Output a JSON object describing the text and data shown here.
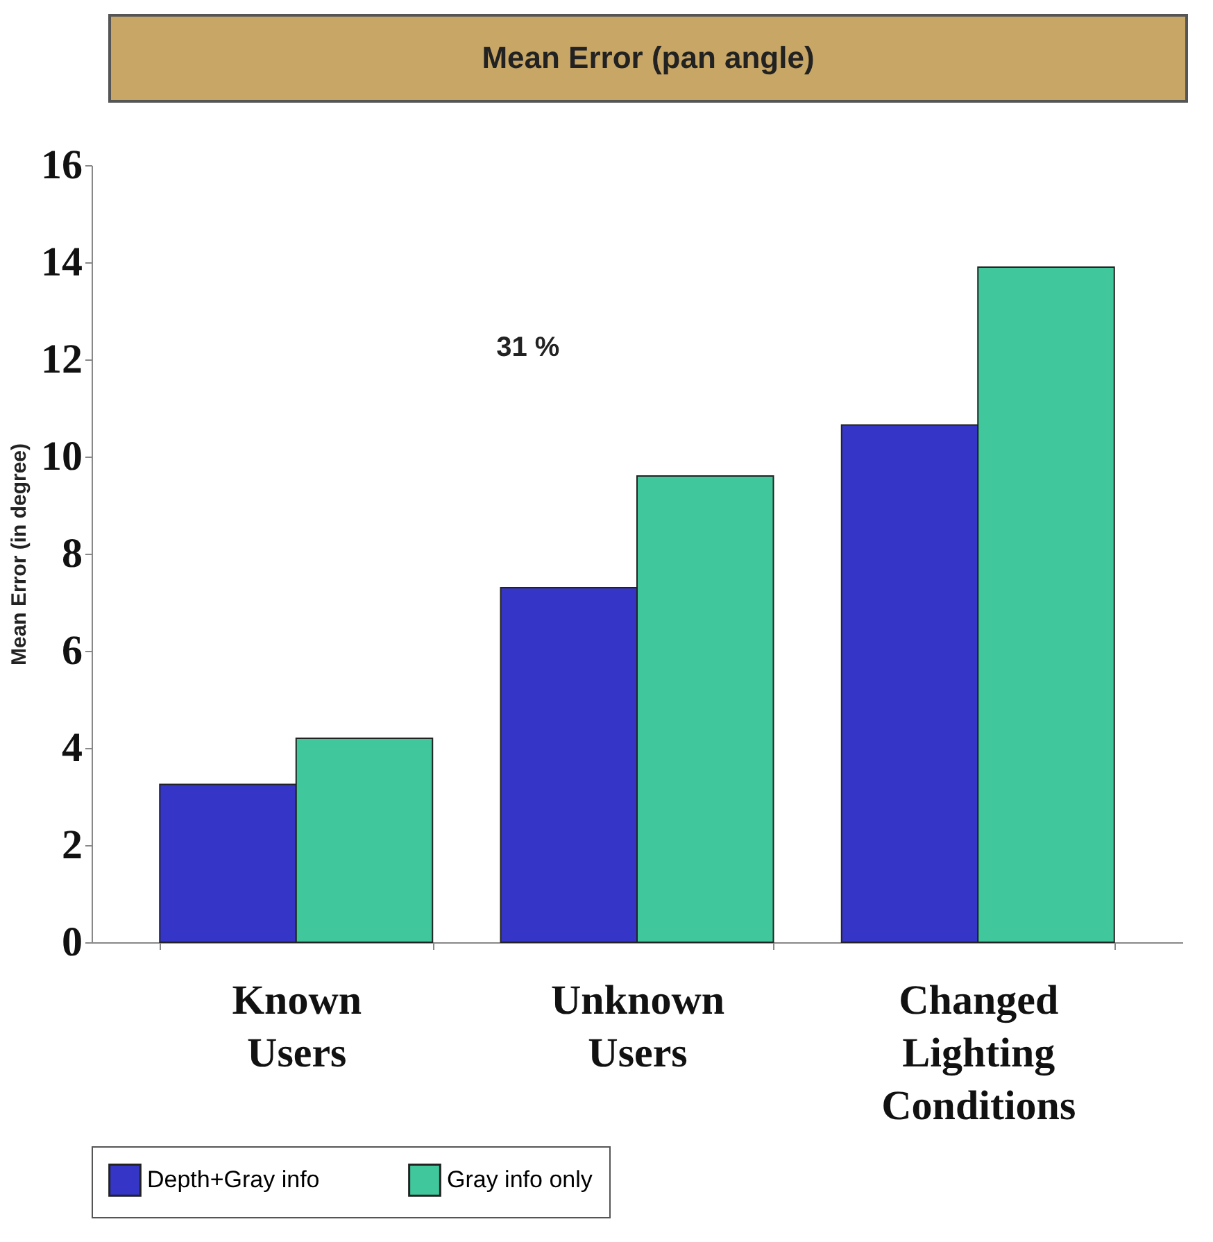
{
  "chart_data": {
    "type": "bar",
    "title": "Mean Error (pan angle)",
    "ylabel": "Mean Error (in degree)",
    "categories": [
      "Known Users",
      "Unknown Users",
      "Changed Lighting Conditions"
    ],
    "series": [
      {
        "name": "Depth+Gray info",
        "color": "#3535c8",
        "values": [
          3.25,
          7.3,
          10.65
        ]
      },
      {
        "name": "Gray info only",
        "color": "#40c89c",
        "values": [
          4.2,
          9.6,
          13.9
        ]
      }
    ],
    "ylim": [
      0,
      16
    ],
    "yticks": [
      0,
      2,
      4,
      6,
      8,
      10,
      12,
      14,
      16
    ],
    "grid": false,
    "legend": "bottom",
    "annotations": [
      "31 %"
    ]
  }
}
